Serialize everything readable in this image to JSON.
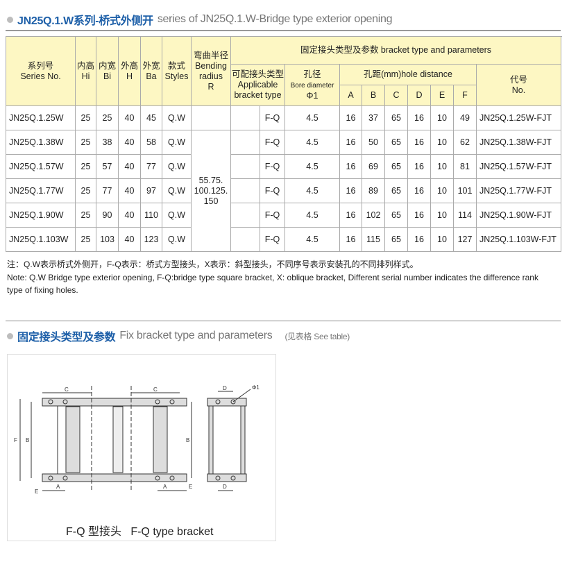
{
  "section1": {
    "title_cn": "JN25Q.1.W系列-桥式外侧开",
    "title_en": "series of JN25Q.1.W-Bridge type exterior opening"
  },
  "table": {
    "headers": {
      "series": [
        "系列号",
        "Series No."
      ],
      "hi": [
        "内高",
        "Hi"
      ],
      "bi": [
        "内宽",
        "Bi"
      ],
      "h": [
        "外高",
        "H"
      ],
      "ba": [
        "外宽",
        "Ba"
      ],
      "styles": [
        "款式",
        "Styles"
      ],
      "radius": [
        "弯曲半径",
        "Bending",
        "radius",
        "R"
      ],
      "bracket_group": "固定接头类型及参数 bracket type and parameters",
      "applicable": [
        "可配接头类型",
        "Applicable",
        "bracket type"
      ],
      "bore": [
        "孔径",
        "Bore diameter",
        "Φ1"
      ],
      "hole_distance": "孔距(mm)hole distance",
      "holes": [
        "A",
        "B",
        "C",
        "D",
        "E",
        "F"
      ],
      "no": [
        "代号",
        "No."
      ]
    },
    "bending_radius": [
      "55.75.",
      "100.125.",
      "150"
    ],
    "rows": [
      {
        "series": "JN25Q.1.25W",
        "hi": "25",
        "bi": "25",
        "h": "40",
        "ba": "45",
        "style": "Q.W",
        "type": "F-Q",
        "bore": "4.5",
        "a": "16",
        "b": "37",
        "c": "65",
        "d": "16",
        "e": "10",
        "f": "49",
        "no": "JN25Q.1.25W-FJT"
      },
      {
        "series": "JN25Q.1.38W",
        "hi": "25",
        "bi": "38",
        "h": "40",
        "ba": "58",
        "style": "Q.W",
        "type": "F-Q",
        "bore": "4.5",
        "a": "16",
        "b": "50",
        "c": "65",
        "d": "16",
        "e": "10",
        "f": "62",
        "no": "JN25Q.1.38W-FJT"
      },
      {
        "series": "JN25Q.1.57W",
        "hi": "25",
        "bi": "57",
        "h": "40",
        "ba": "77",
        "style": "Q.W",
        "type": "F-Q",
        "bore": "4.5",
        "a": "16",
        "b": "69",
        "c": "65",
        "d": "16",
        "e": "10",
        "f": "81",
        "no": "JN25Q.1.57W-FJT"
      },
      {
        "series": "JN25Q.1.77W",
        "hi": "25",
        "bi": "77",
        "h": "40",
        "ba": "97",
        "style": "Q.W",
        "type": "F-Q",
        "bore": "4.5",
        "a": "16",
        "b": "89",
        "c": "65",
        "d": "16",
        "e": "10",
        "f": "101",
        "no": "JN25Q.1.77W-FJT"
      },
      {
        "series": "JN25Q.1.90W",
        "hi": "25",
        "bi": "90",
        "h": "40",
        "ba": "110",
        "style": "Q.W",
        "type": "F-Q",
        "bore": "4.5",
        "a": "16",
        "b": "102",
        "c": "65",
        "d": "16",
        "e": "10",
        "f": "114",
        "no": "JN25Q.1.90W-FJT"
      },
      {
        "series": "JN25Q.1.103W",
        "hi": "25",
        "bi": "103",
        "h": "40",
        "ba": "123",
        "style": "Q.W",
        "type": "F-Q",
        "bore": "4.5",
        "a": "16",
        "b": "115",
        "c": "65",
        "d": "16",
        "e": "10",
        "f": "127",
        "no": "JN25Q.1.103W-FJT"
      }
    ]
  },
  "notes": {
    "cn": "注：Q.W表示桥式外侧开，F-Q表示：桥式方型接头，X表示：斜型接头，不同序号表示安装孔的不同排列样式。",
    "en": "Note: Q.W Bridge type exterior opening, F-Q:bridge type square bracket, X: oblique bracket, Different serial number indicates the difference rank type of fixing holes."
  },
  "section2": {
    "title_cn": "固定接头类型及参数",
    "title_en": "Fix bracket type and parameters",
    "hint": "(见表格 See table)"
  },
  "diagram": {
    "labels": {
      "c": "C",
      "d": "D",
      "phi": "Φ1",
      "f": "F",
      "b": "B",
      "e": "E",
      "a": "A"
    },
    "caption": "F-Q 型接头   F-Q type bracket"
  },
  "colors": {
    "header_bg": "#fdf7c3",
    "accent_blue": "#1d5fa8"
  }
}
